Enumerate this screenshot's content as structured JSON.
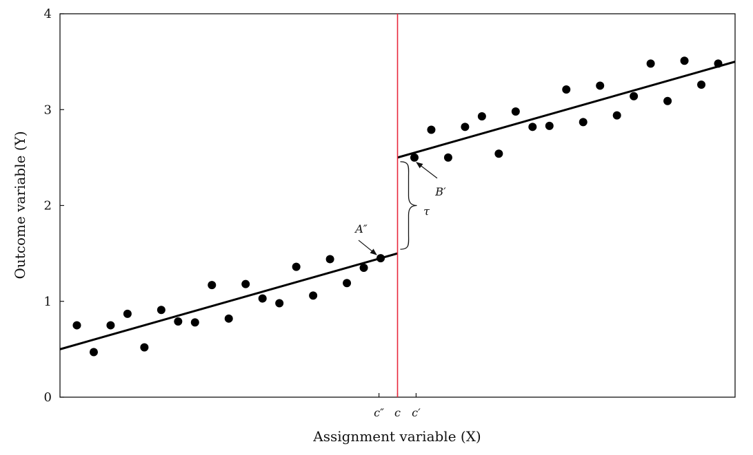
{
  "chart_data": {
    "type": "scatter",
    "title": "",
    "xlabel": "Assignment variable (X)",
    "ylabel": "Outcome variable (Y)",
    "ylim": [
      0,
      4
    ],
    "xlim": [
      0,
      40
    ],
    "yticks": [
      0,
      1,
      2,
      3,
      4
    ],
    "grid": false,
    "cutoff": 20,
    "xtick_labels": [
      {
        "x": 18.9,
        "label": "c″"
      },
      {
        "x": 20,
        "label": "c"
      },
      {
        "x": 21.1,
        "label": "c′"
      }
    ],
    "points": [
      {
        "x": 1,
        "y": 0.75
      },
      {
        "x": 2,
        "y": 0.47
      },
      {
        "x": 3,
        "y": 0.75
      },
      {
        "x": 4,
        "y": 0.87
      },
      {
        "x": 5,
        "y": 0.52
      },
      {
        "x": 6,
        "y": 0.91
      },
      {
        "x": 7,
        "y": 0.79
      },
      {
        "x": 8,
        "y": 0.78
      },
      {
        "x": 9,
        "y": 1.17
      },
      {
        "x": 10,
        "y": 0.82
      },
      {
        "x": 11,
        "y": 1.18
      },
      {
        "x": 12,
        "y": 1.03
      },
      {
        "x": 13,
        "y": 0.98
      },
      {
        "x": 14,
        "y": 1.36
      },
      {
        "x": 15,
        "y": 1.06
      },
      {
        "x": 16,
        "y": 1.44
      },
      {
        "x": 17,
        "y": 1.19
      },
      {
        "x": 18,
        "y": 1.35
      },
      {
        "x": 19,
        "y": 1.45
      },
      {
        "x": 21,
        "y": 2.5
      },
      {
        "x": 22,
        "y": 2.79
      },
      {
        "x": 23,
        "y": 2.5
      },
      {
        "x": 24,
        "y": 2.82
      },
      {
        "x": 25,
        "y": 2.93
      },
      {
        "x": 26,
        "y": 2.54
      },
      {
        "x": 27,
        "y": 2.98
      },
      {
        "x": 28,
        "y": 2.82
      },
      {
        "x": 29,
        "y": 2.83
      },
      {
        "x": 30,
        "y": 3.21
      },
      {
        "x": 31,
        "y": 2.87
      },
      {
        "x": 32,
        "y": 3.25
      },
      {
        "x": 33,
        "y": 2.94
      },
      {
        "x": 34,
        "y": 3.14
      },
      {
        "x": 35,
        "y": 3.48
      },
      {
        "x": 36,
        "y": 3.09
      },
      {
        "x": 37,
        "y": 3.51
      },
      {
        "x": 38,
        "y": 3.26
      },
      {
        "x": 39,
        "y": 3.48
      }
    ],
    "fit_lines": [
      {
        "x": [
          0,
          20
        ],
        "y": [
          0.5,
          1.5
        ]
      },
      {
        "x": [
          20,
          40
        ],
        "y": [
          2.5,
          3.5
        ]
      }
    ],
    "annotations": {
      "a_label": "A″",
      "b_label": "B′",
      "tau_label": "τ"
    },
    "colors": {
      "points": "#000000",
      "fit_line": "#000000",
      "cutoff_line": "#e8263a"
    }
  }
}
